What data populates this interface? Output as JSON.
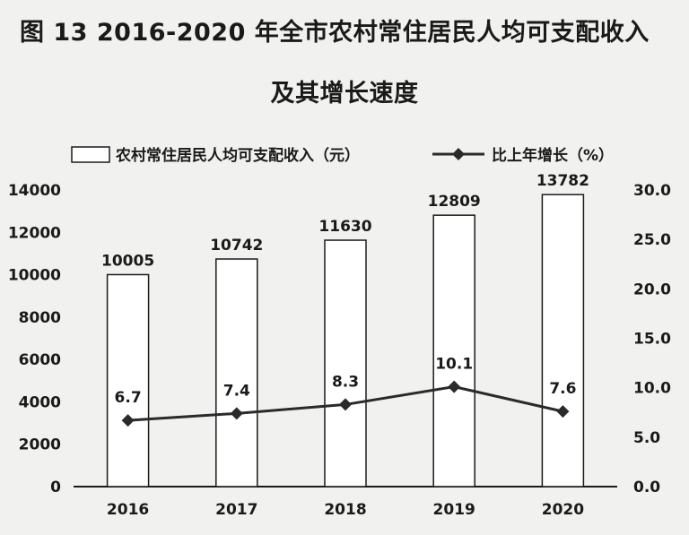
{
  "title_line1": "图 13   2016-2020 年全市农村常住居民人均可支配收入",
  "title_line2": "及其增长速度",
  "chart_data": {
    "type": "bar",
    "categories": [
      "2016",
      "2017",
      "2018",
      "2019",
      "2020"
    ],
    "series": [
      {
        "name": "农村常住居民人均可支配收入（元）",
        "type": "bar",
        "axis": "left",
        "values": [
          10005,
          10742,
          11630,
          12809,
          13782
        ],
        "color": "#ffffff"
      },
      {
        "name": "比上年增长（%）",
        "type": "line",
        "axis": "right",
        "values": [
          6.7,
          7.4,
          8.3,
          10.1,
          7.6
        ],
        "color": "#2a2a2a"
      }
    ],
    "y_left": {
      "min": 0,
      "max": 14000,
      "ticks": [
        "0",
        "2000",
        "4000",
        "6000",
        "8000",
        "10000",
        "12000",
        "14000"
      ]
    },
    "y_right": {
      "min": 0,
      "max": 30,
      "ticks": [
        "0.0",
        "5.0",
        "10.0",
        "15.0",
        "20.0",
        "25.0",
        "30.0"
      ]
    },
    "legend_position": "top",
    "grid": false
  }
}
